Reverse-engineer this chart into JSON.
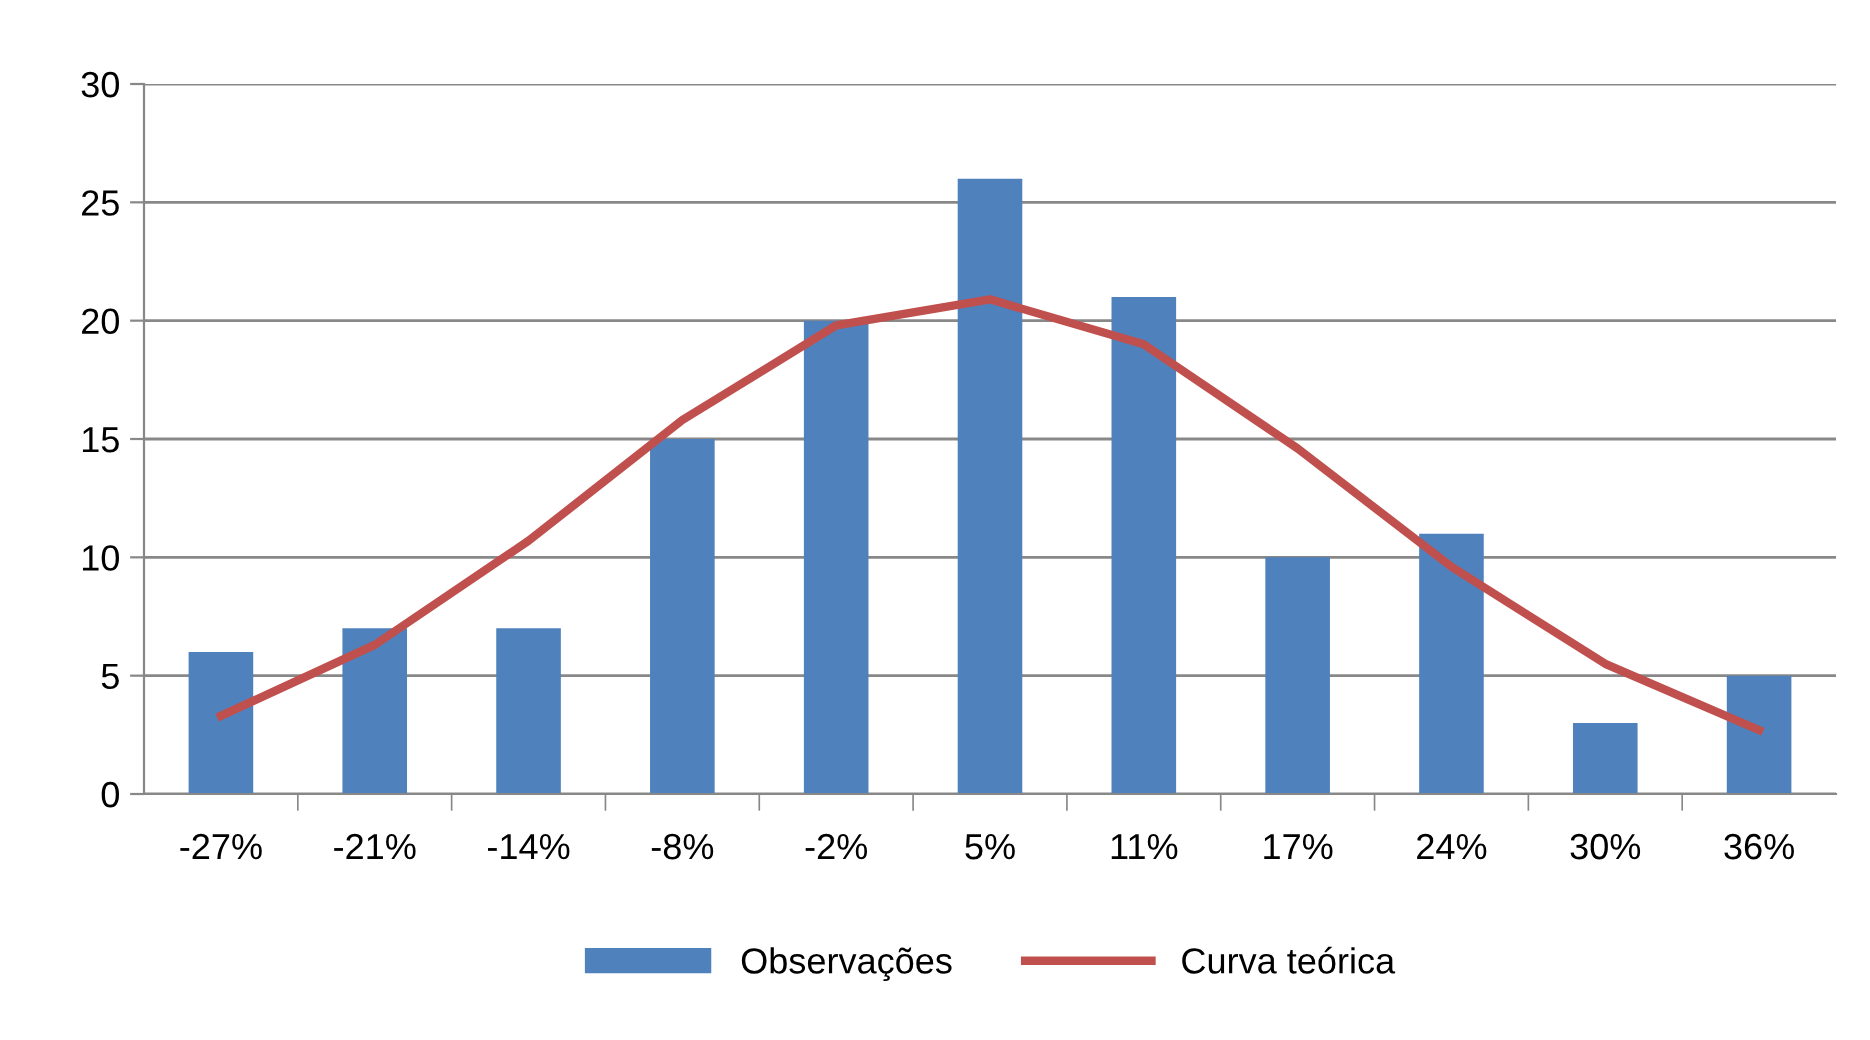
{
  "chart_data": {
    "type": "bar",
    "categories": [
      "-27%",
      "-21%",
      "-14%",
      "-8%",
      "-2%",
      "5%",
      "11%",
      "17%",
      "24%",
      "30%",
      "36%"
    ],
    "series": [
      {
        "name": "Observações",
        "color": "#4f81bd",
        "values": [
          6,
          7,
          7,
          15,
          20,
          26,
          21,
          10,
          11,
          3,
          5
        ]
      },
      {
        "name": "Curva teórica",
        "type": "line",
        "color": "#c0504d",
        "values": [
          3.3,
          6.3,
          10.7,
          15.8,
          19.8,
          20.9,
          19.0,
          14.6,
          9.6,
          5.5,
          2.7
        ]
      }
    ],
    "ylim": [
      0,
      30
    ],
    "yticks": [
      0,
      5,
      10,
      15,
      20,
      25,
      30
    ],
    "grid": "y",
    "legend": "bottom",
    "marker": "none",
    "line_style": "solid"
  }
}
